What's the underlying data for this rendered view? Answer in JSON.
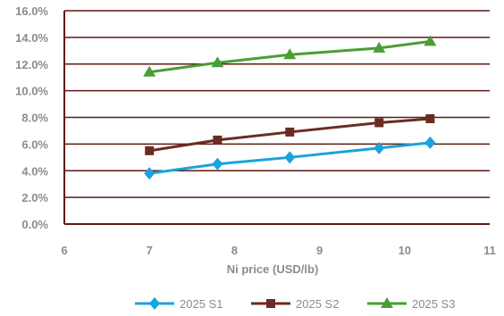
{
  "chart_data": {
    "type": "line",
    "title": "",
    "xlabel": "Ni price (USD/lb)",
    "ylabel": "",
    "xlim": [
      6,
      11
    ],
    "ylim": [
      0,
      16
    ],
    "x_ticks": [
      "6",
      "7",
      "8",
      "9",
      "10",
      "11"
    ],
    "y_ticks": [
      "0.0%",
      "2.0%",
      "4.0%",
      "6.0%",
      "8.0%",
      "10.0%",
      "12.0%",
      "14.0%",
      "16.0%"
    ],
    "grid": "horizontal",
    "legend_position": "bottom",
    "series": [
      {
        "name": "2025 S1",
        "color": "#1aa3dc",
        "marker": "diamond",
        "x": [
          7.0,
          7.8,
          8.65,
          9.7,
          10.3
        ],
        "y": [
          3.8,
          4.5,
          5.0,
          5.7,
          6.1
        ]
      },
      {
        "name": "2025 S2",
        "color": "#6b2c22",
        "marker": "square",
        "x": [
          7.0,
          7.8,
          8.65,
          9.7,
          10.3
        ],
        "y": [
          5.5,
          6.3,
          6.9,
          7.6,
          7.9
        ]
      },
      {
        "name": "2025 S3",
        "color": "#4a9e35",
        "marker": "triangle",
        "x": [
          7.0,
          7.8,
          8.65,
          9.7,
          10.3
        ],
        "y": [
          11.4,
          12.1,
          12.7,
          13.2,
          13.7
        ]
      }
    ]
  }
}
